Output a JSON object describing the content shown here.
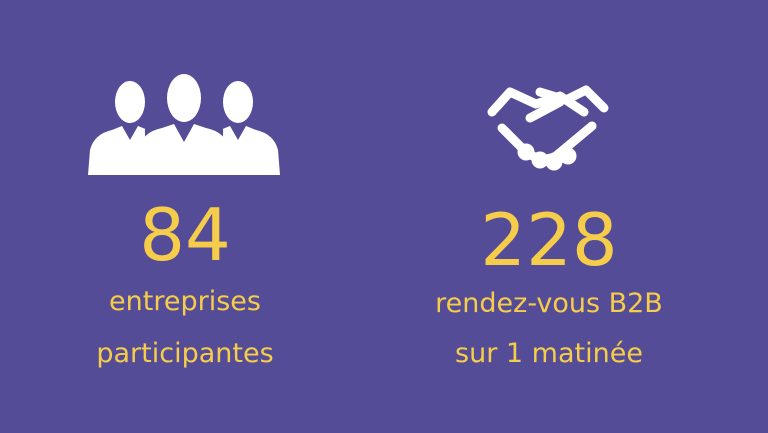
{
  "stats": [
    {
      "value": 84,
      "label_lines": [
        "entreprises",
        "participantes"
      ]
    },
    {
      "value": 228,
      "label_lines": [
        "rendez-vous B2B",
        "sur 1 matinée"
      ]
    }
  ]
}
